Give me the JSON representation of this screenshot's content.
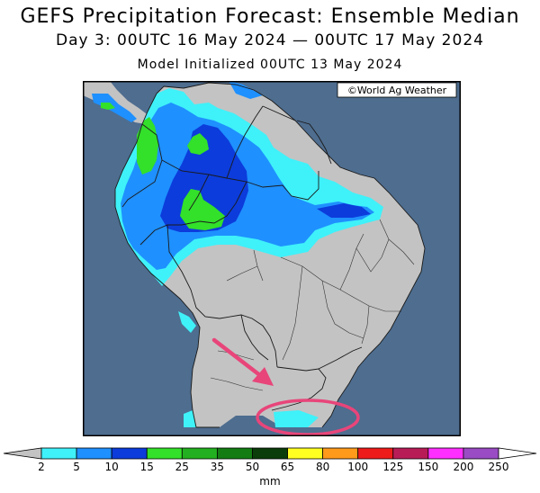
{
  "titles": {
    "main": "GEFS Precipitation Forecast: Ensemble Median",
    "period": "Day 3: 00UTC 16 May 2024 — 00UTC 17 May 2024",
    "init": "Model Initialized 00UTC 13 May 2024"
  },
  "credit": "©World Ag Weather",
  "colors": {
    "ocean": "#4e6d8f",
    "land": "#c3c3c3",
    "border": "#1a1a1a",
    "annotation": "#e8457a"
  },
  "legend": {
    "units": "mm",
    "ticks": [
      "2",
      "5",
      "10",
      "15",
      "25",
      "35",
      "50",
      "65",
      "80",
      "100",
      "125",
      "150",
      "200",
      "250"
    ],
    "bins": [
      {
        "from": "2",
        "to": "5",
        "color": "#3ff1f9"
      },
      {
        "from": "5",
        "to": "10",
        "color": "#1e90ff"
      },
      {
        "from": "10",
        "to": "15",
        "color": "#0c3cdb"
      },
      {
        "from": "15",
        "to": "25",
        "color": "#33e02a"
      },
      {
        "from": "25",
        "to": "35",
        "color": "#23b020"
      },
      {
        "from": "35",
        "to": "50",
        "color": "#137d13"
      },
      {
        "from": "50",
        "to": "65",
        "color": "#0a3d0a"
      },
      {
        "from": "65",
        "to": "80",
        "color": "#ffff22"
      },
      {
        "from": "80",
        "to": "100",
        "color": "#ff9a1a"
      },
      {
        "from": "100",
        "to": "125",
        "color": "#ee1b1b"
      },
      {
        "from": "125",
        "to": "150",
        "color": "#b81c56"
      },
      {
        "from": "150",
        "to": "200",
        "color": "#ff30ff"
      },
      {
        "from": "200",
        "to": "250",
        "color": "#9a4cc4"
      }
    ],
    "below_color": "#c3c3c3",
    "above_color": "#ffffff"
  },
  "annotations": {
    "arrow": "pink-arrow",
    "highlight": "pink-ellipse"
  }
}
